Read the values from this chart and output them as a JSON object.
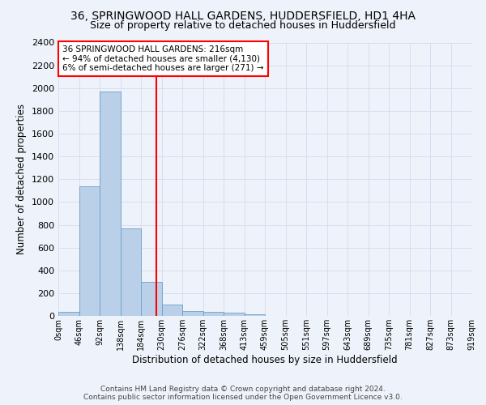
{
  "title_line1": "36, SPRINGWOOD HALL GARDENS, HUDDERSFIELD, HD1 4HA",
  "title_line2": "Size of property relative to detached houses in Huddersfield",
  "xlabel": "Distribution of detached houses by size in Huddersfield",
  "ylabel": "Number of detached properties",
  "annotation_line1": "36 SPRINGWOOD HALL GARDENS: 216sqm",
  "annotation_line2": "← 94% of detached houses are smaller (4,130)",
  "annotation_line3": "6% of semi-detached houses are larger (271) →",
  "footer_line1": "Contains HM Land Registry data © Crown copyright and database right 2024.",
  "footer_line2": "Contains public sector information licensed under the Open Government Licence v3.0.",
  "bin_labels": [
    "0sqm",
    "46sqm",
    "92sqm",
    "138sqm",
    "184sqm",
    "230sqm",
    "276sqm",
    "322sqm",
    "368sqm",
    "413sqm",
    "459sqm",
    "505sqm",
    "551sqm",
    "597sqm",
    "643sqm",
    "689sqm",
    "735sqm",
    "781sqm",
    "827sqm",
    "873sqm",
    "919sqm"
  ],
  "bar_values": [
    35,
    1140,
    1970,
    770,
    300,
    100,
    45,
    38,
    25,
    15,
    0,
    0,
    0,
    0,
    0,
    0,
    0,
    0,
    0,
    0
  ],
  "bar_color": "#bad0e8",
  "bar_edge_color": "#6a9fc8",
  "vline_x": 4.73,
  "vline_color": "red",
  "ylim": [
    0,
    2400
  ],
  "yticks": [
    0,
    200,
    400,
    600,
    800,
    1000,
    1200,
    1400,
    1600,
    1800,
    2000,
    2200,
    2400
  ],
  "annotation_box_color": "white",
  "annotation_box_edge_color": "red",
  "background_color": "#eef2fa",
  "grid_color": "#d8def0",
  "title_fontsize": 10,
  "subtitle_fontsize": 9,
  "xlabel_fontsize": 8.5,
  "ylabel_fontsize": 8.5,
  "annotation_fontsize": 7.5,
  "tick_fontsize": 7,
  "footer_fontsize": 6.5
}
